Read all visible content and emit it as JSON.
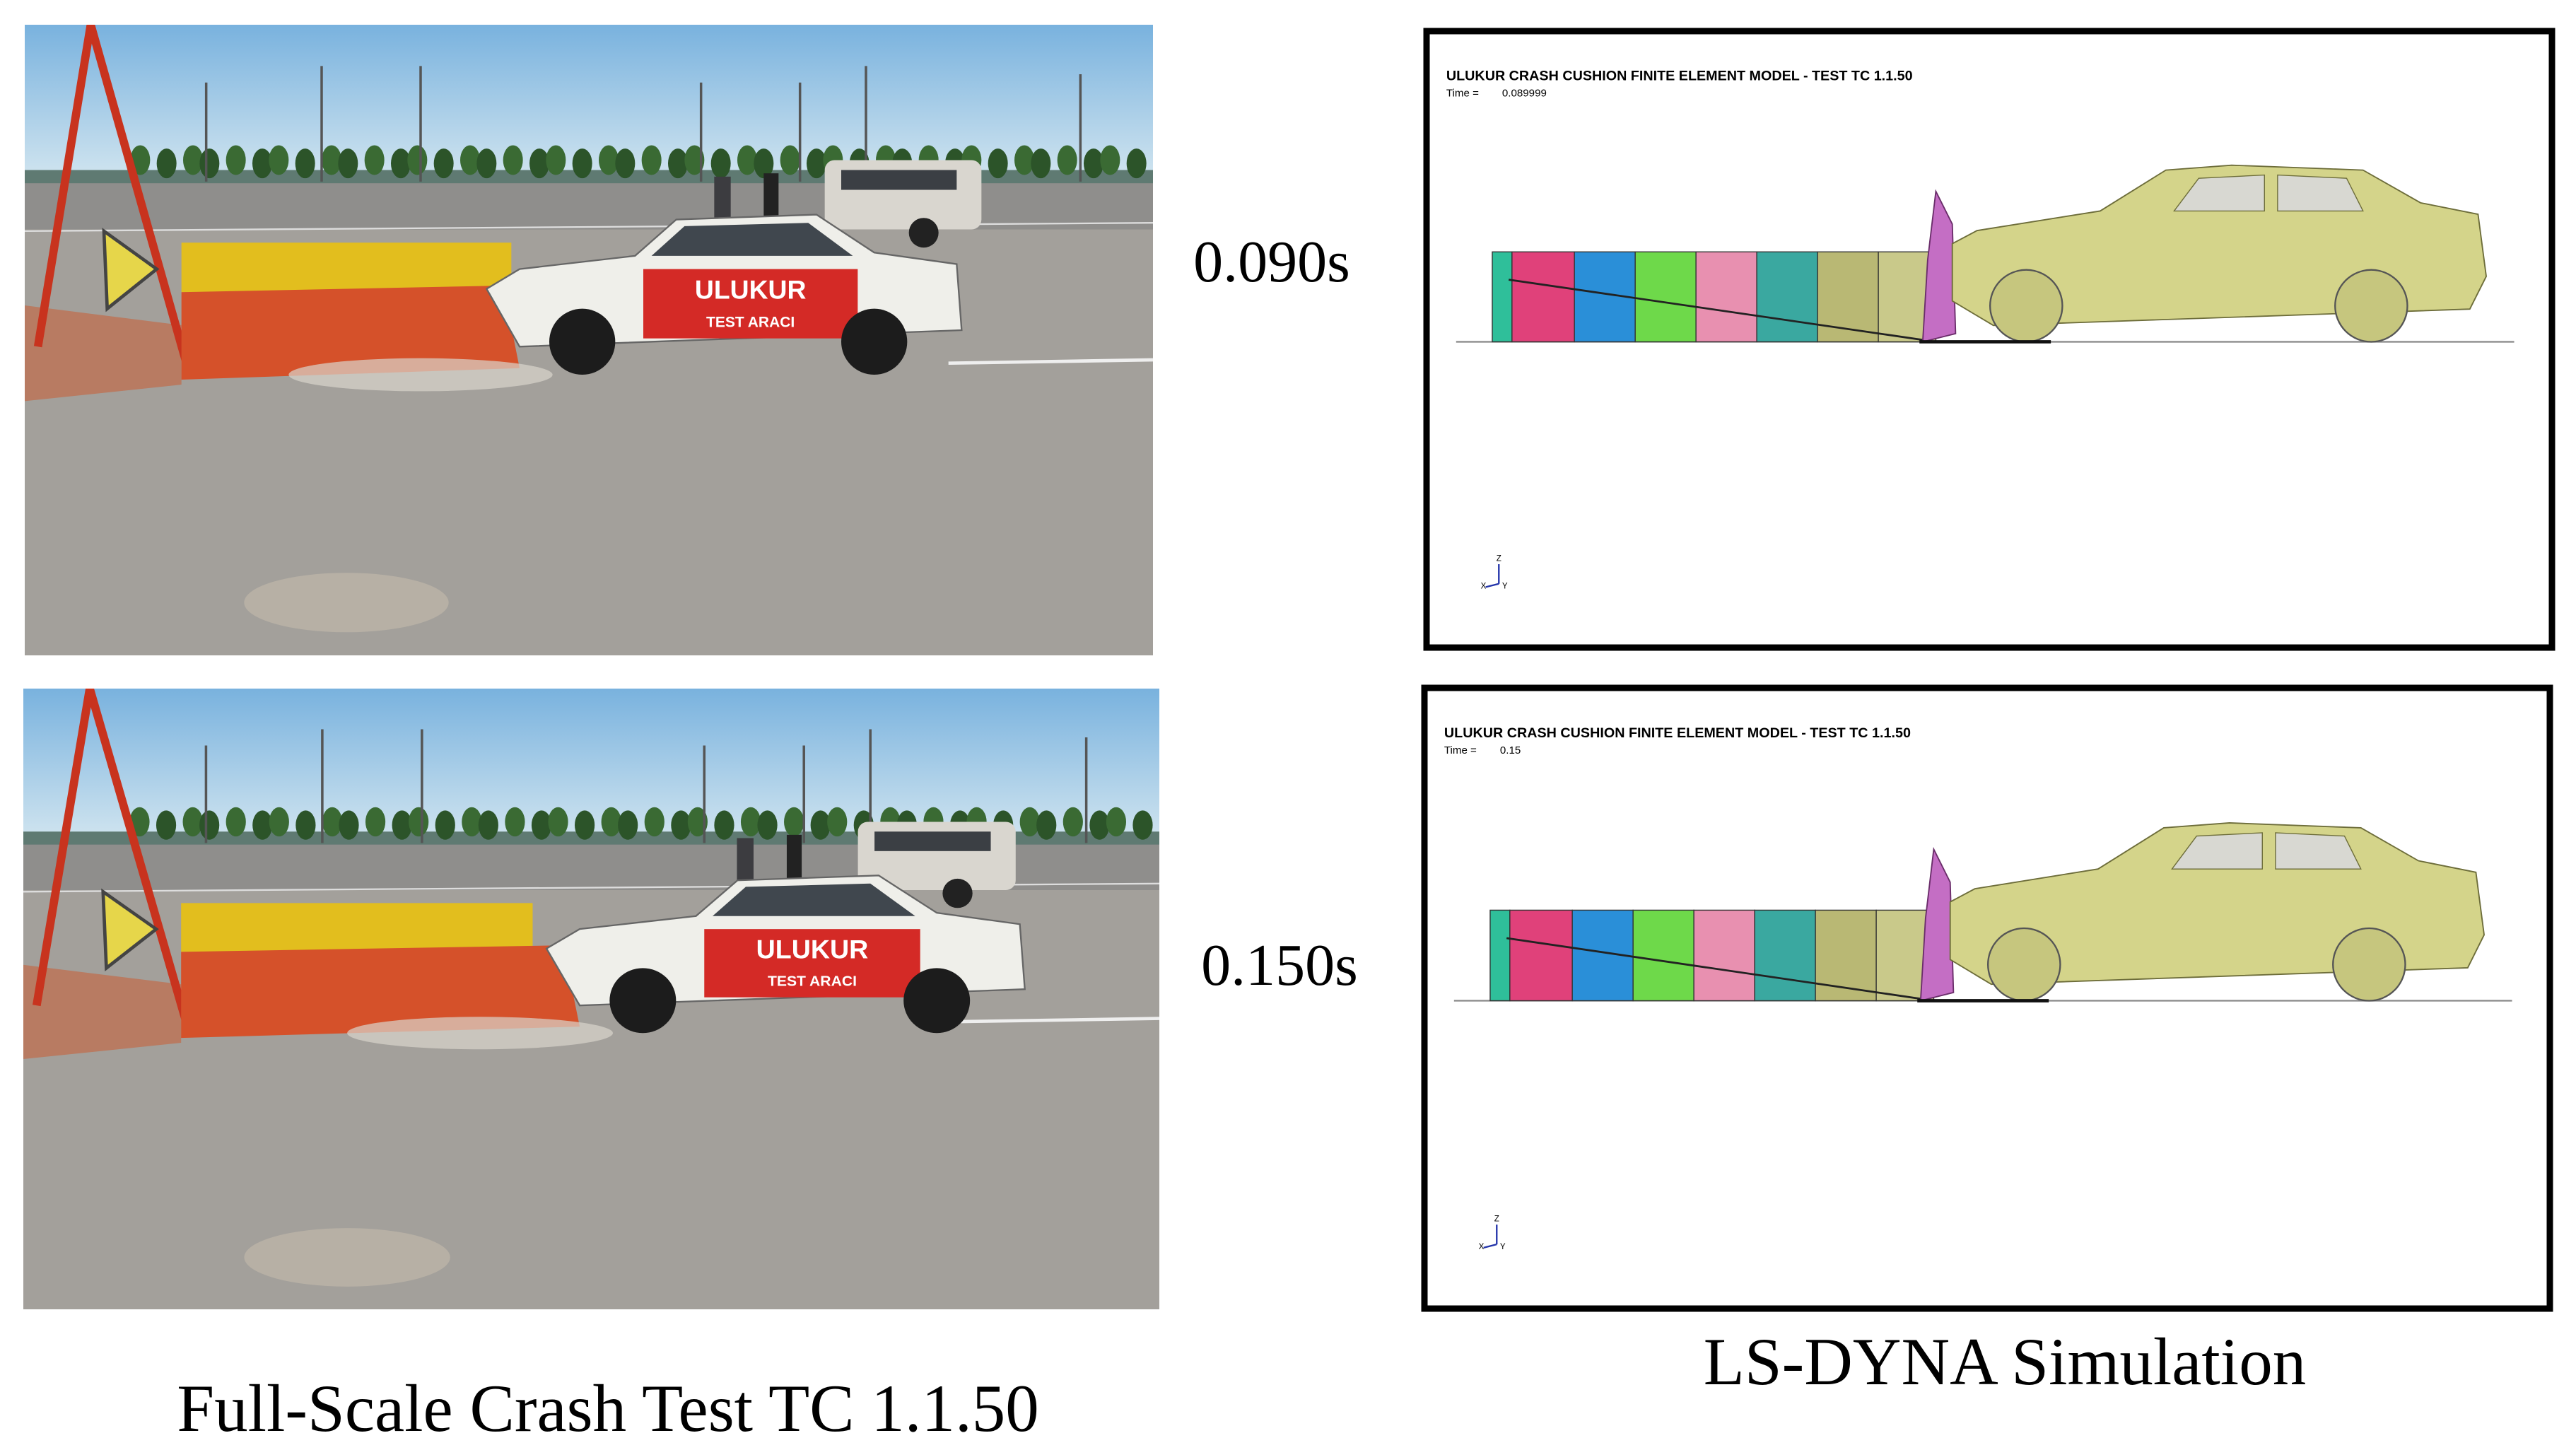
{
  "frames": [
    {
      "time": "0.090s",
      "photo": {
        "sign_top": "ULUKUR",
        "sign_bottom": "TEST ARACI"
      },
      "simulation": {
        "title": "ULUKUR CRASH CUSHION FINITE ELEMENT MODEL - TEST TC 1.1.50",
        "time_label": "Time =",
        "time_value": "0.089999"
      }
    },
    {
      "time": "0.150s",
      "photo": {
        "sign_top": "ULUKUR",
        "sign_bottom": "TEST ARACI"
      },
      "simulation": {
        "title": "ULUKUR CRASH CUSHION FINITE ELEMENT MODEL - TEST TC 1.1.50",
        "time_label": "Time =",
        "time_value": "0.15"
      }
    }
  ],
  "triad": {
    "z": "Z",
    "x": "X",
    "y": "Y"
  },
  "captions": {
    "left": "Full-Scale Crash Test TC 1.1.50",
    "right": "LS-DYNA Simulation"
  }
}
